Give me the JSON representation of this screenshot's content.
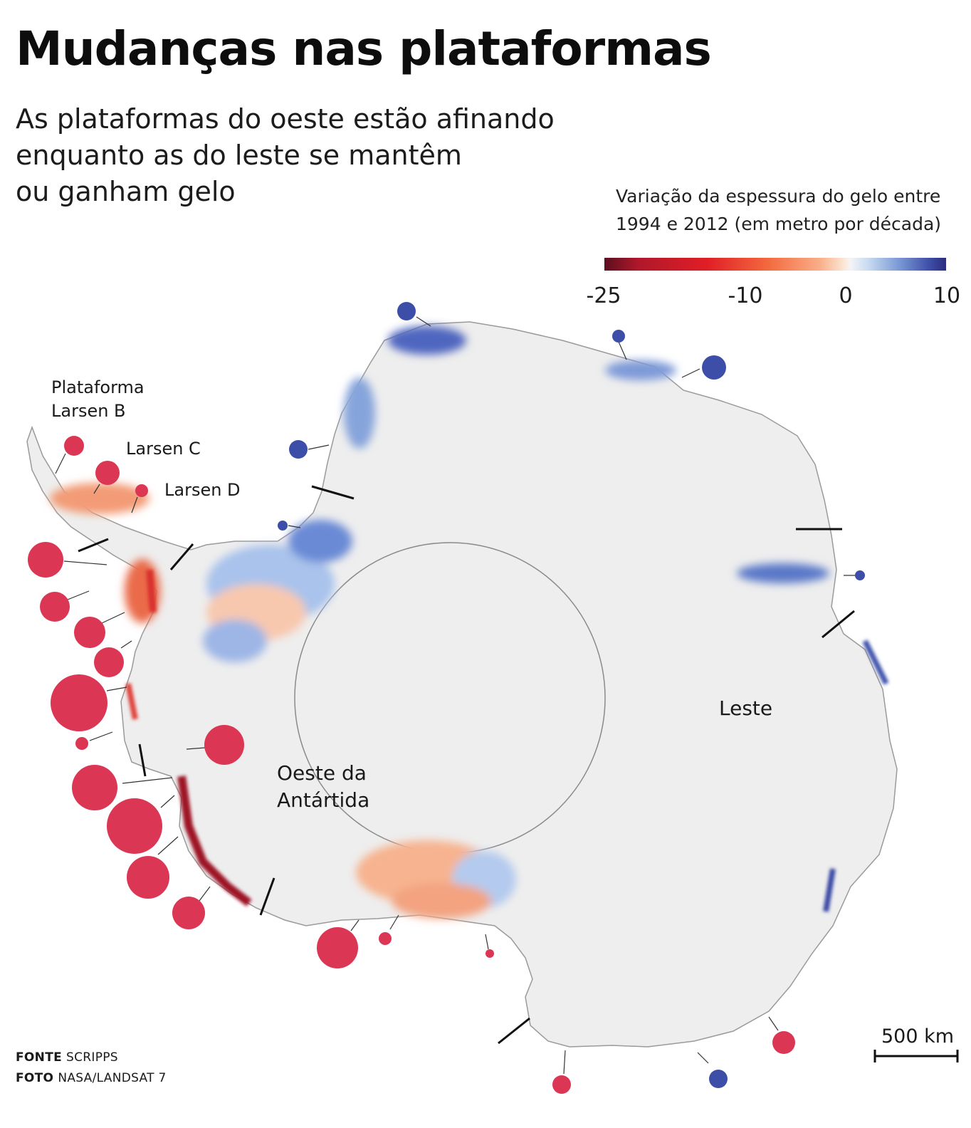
{
  "header": {
    "title": "Mudanças nas plataformas",
    "subtitle": "As plataformas do oeste estão afinando\nenquanto as do leste se mantêm\nou ganham gelo"
  },
  "legend": {
    "title": "Variação da espessura do gelo entre\n1994 e 2012 (em metro por década)",
    "ticks": [
      "-25",
      "-10",
      "0",
      "10"
    ],
    "colors": {
      "thinning_strong": "#7a1022",
      "thinning": "#e02a35",
      "neutral": "#f4f4f6",
      "thickening": "#3f4fa8"
    }
  },
  "map": {
    "labels": {
      "larsen_b": "Plataforma\nLarsen B",
      "larsen_c": "Larsen C",
      "larsen_d": "Larsen D",
      "west": "Oeste da\nAntártida",
      "east": "Leste"
    },
    "scale_bar": "500 km",
    "marker_colors": {
      "loss": "#dc3655",
      "gain": "#3d4ea8"
    }
  },
  "footer": {
    "source_label": "FONTE",
    "source_value": "SCRIPPS",
    "photo_label": "FOTO",
    "photo_value": "NASA/LANDSAT 7"
  }
}
